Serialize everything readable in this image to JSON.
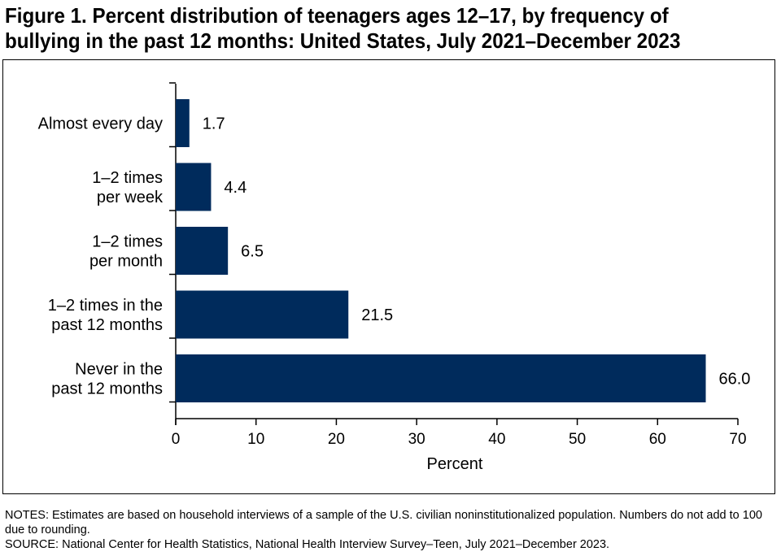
{
  "title_line1": "Figure 1. Percent distribution of teenagers ages 12–17, by frequency of",
  "title_line2": "bullying in the past 12 months: United States, July 2021–December 2023",
  "notes": "NOTES: Estimates are based on household interviews of a sample of the U.S. civilian noninstitutionalized population. Numbers do not add to 100 due to rounding.",
  "source": "SOURCE: National Center for Health Statistics, National Health Interview Survey–Teen, July 2021–December 2023.",
  "colors": {
    "bar": "#002b5c"
  },
  "chart_data": {
    "type": "bar",
    "orientation": "horizontal",
    "categories": [
      [
        "Almost every day"
      ],
      [
        "1–2 times",
        "per week"
      ],
      [
        "1–2 times",
        "per month"
      ],
      [
        "1–2 times in the",
        "past 12 months"
      ],
      [
        "Never in the",
        "past 12 months"
      ]
    ],
    "values": [
      1.7,
      4.4,
      6.5,
      21.5,
      66.0
    ],
    "value_labels": [
      "1.7",
      "4.4",
      "6.5",
      "21.5",
      "66.0"
    ],
    "xlabel": "Percent",
    "xlim": [
      0,
      70
    ],
    "xticks": [
      "0",
      "10",
      "20",
      "30",
      "40",
      "50",
      "60",
      "70"
    ],
    "grid": false,
    "legend": "none"
  }
}
